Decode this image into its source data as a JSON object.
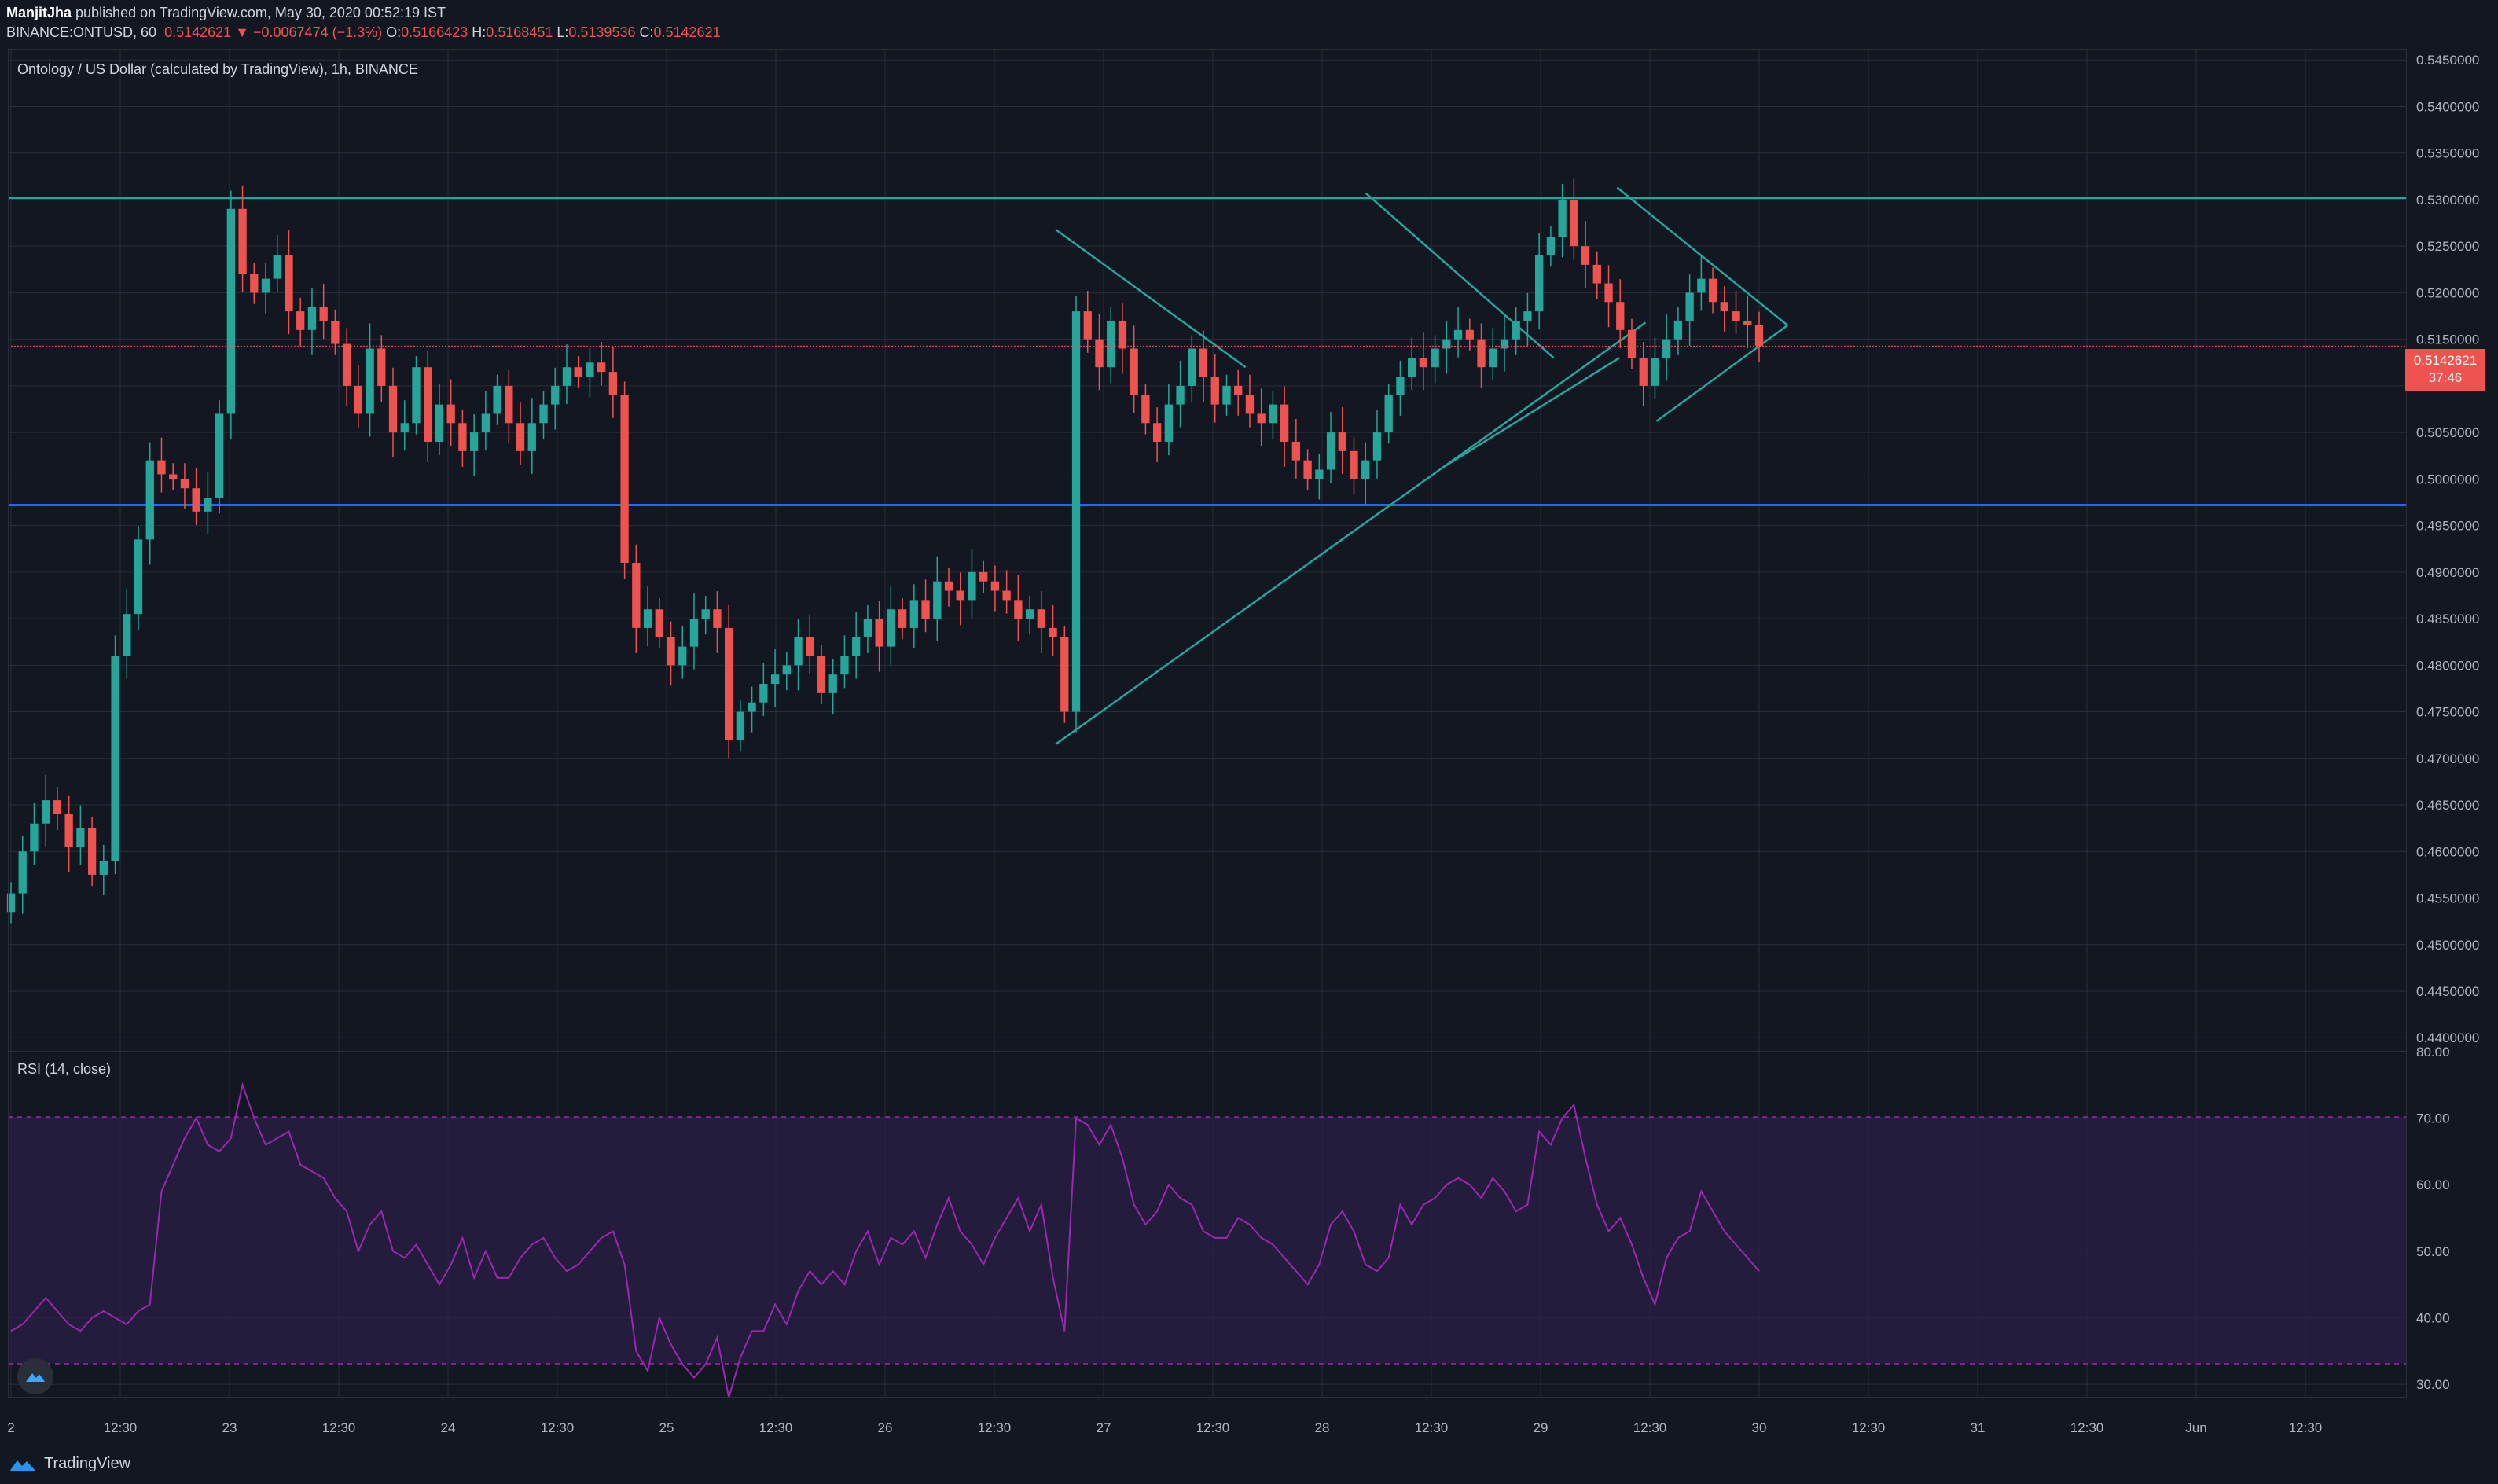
{
  "header": {
    "author": "ManjitJha",
    "published_text": "published on TradingView.com, May 30, 2020 00:52:19 IST",
    "symbol": "BINANCE:ONTUSD, 60",
    "last": "0.5142621",
    "change": "▼ −0.0067474 (−1.3%)",
    "o_label": "O:",
    "o_value": "0.5166423",
    "h_label": "H:",
    "h_value": "0.5168451",
    "l_label": "L:",
    "l_value": "0.5139536",
    "c_label": "C:",
    "c_value": "0.5142621"
  },
  "main_pane": {
    "title": "Ontology / US Dollar (calculated by TradingView), 1h, BINANCE",
    "price_tag": "0.5142621",
    "countdown": "37:46"
  },
  "rsi_pane": {
    "title": "RSI (14, close)"
  },
  "footer": {
    "brand": "TradingView"
  },
  "colors": {
    "background": "#131722",
    "up": "#26a69a",
    "down": "#ef5350",
    "trendline": "#26a69a",
    "support": "#2962ff",
    "rsi_line": "#9c27b0",
    "rsi_band": "#2a1f45"
  },
  "chart_data": [
    {
      "type": "candlestick",
      "title": "Ontology / US Dollar (calculated by TradingView), 1h, BINANCE",
      "x_ticks": [
        "2",
        "12:30",
        "23",
        "12:30",
        "24",
        "12:30",
        "25",
        "12:30",
        "26",
        "12:30",
        "27",
        "12:30",
        "28",
        "12:30",
        "29",
        "12:30",
        "30",
        "12:30",
        "31",
        "12:30",
        "Jun",
        "12:30"
      ],
      "y_ticks": [
        "0.5450000",
        "0.5400000",
        "0.5350000",
        "0.5300000",
        "0.5250000",
        "0.5200000",
        "0.5150000",
        "0.5100000",
        "0.5050000",
        "0.5000000",
        "0.4950000",
        "0.4900000",
        "0.4850000",
        "0.4800000",
        "0.4750000",
        "0.4700000",
        "0.4650000",
        "0.4600000",
        "0.4550000",
        "0.4500000",
        "0.4450000",
        "0.4400000"
      ],
      "ylim": [
        0.4385,
        0.5462
      ],
      "horizontal_lines": [
        {
          "name": "resistance",
          "y": 0.5302,
          "color": "#26a69a"
        },
        {
          "name": "support",
          "y": 0.4972,
          "color": "#2962ff"
        }
      ],
      "trendlines": [
        {
          "from": [
            26.78,
            0.5268
          ],
          "to": [
            27.65,
            0.512
          ]
        },
        {
          "from": [
            26.78,
            0.4715
          ],
          "to": [
            29.48,
            0.5168
          ]
        },
        {
          "from": [
            28.2,
            0.5307
          ],
          "to": [
            29.06,
            0.513
          ]
        },
        {
          "from": [
            28.55,
            0.5012
          ],
          "to": [
            29.36,
            0.513
          ]
        },
        {
          "from": [
            29.35,
            0.5313
          ],
          "to": [
            30.13,
            0.5165
          ]
        },
        {
          "from": [
            29.53,
            0.5062
          ],
          "to": [
            30.13,
            0.5165
          ]
        }
      ],
      "candles_close": [
        0.4555,
        0.46,
        0.463,
        0.4655,
        0.464,
        0.4605,
        0.4625,
        0.4575,
        0.459,
        0.481,
        0.4855,
        0.4935,
        0.502,
        0.5005,
        0.5,
        0.499,
        0.4965,
        0.498,
        0.507,
        0.529,
        0.522,
        0.52,
        0.5215,
        0.524,
        0.518,
        0.516,
        0.5185,
        0.517,
        0.5145,
        0.51,
        0.507,
        0.514,
        0.51,
        0.505,
        0.506,
        0.512,
        0.504,
        0.508,
        0.506,
        0.503,
        0.505,
        0.507,
        0.51,
        0.506,
        0.503,
        0.506,
        0.508,
        0.51,
        0.512,
        0.511,
        0.5125,
        0.5115,
        0.509,
        0.491,
        0.484,
        0.486,
        0.483,
        0.48,
        0.482,
        0.485,
        0.486,
        0.484,
        0.472,
        0.475,
        0.476,
        0.478,
        0.479,
        0.48,
        0.483,
        0.481,
        0.477,
        0.479,
        0.481,
        0.483,
        0.485,
        0.482,
        0.486,
        0.484,
        0.487,
        0.485,
        0.489,
        0.488,
        0.487,
        0.49,
        0.489,
        0.488,
        0.487,
        0.485,
        0.486,
        0.484,
        0.483,
        0.475,
        0.518,
        0.515,
        0.512,
        0.517,
        0.514,
        0.509,
        0.506,
        0.504,
        0.508,
        0.51,
        0.514,
        0.511,
        0.508,
        0.51,
        0.509,
        0.507,
        0.506,
        0.508,
        0.504,
        0.502,
        0.5,
        0.501,
        0.505,
        0.503,
        0.5,
        0.502,
        0.505,
        0.509,
        0.511,
        0.513,
        0.512,
        0.514,
        0.515,
        0.516,
        0.515,
        0.512,
        0.514,
        0.515,
        0.517,
        0.518,
        0.524,
        0.526,
        0.53,
        0.525,
        0.523,
        0.521,
        0.519,
        0.516,
        0.513,
        0.51,
        0.513,
        0.515,
        0.517,
        0.52,
        0.5215,
        0.519,
        0.518,
        0.517,
        0.5165,
        0.5143
      ],
      "series": [
        {
          "name": "ONTUSD",
          "type": "candles"
        }
      ],
      "current_price": 0.5142621
    },
    {
      "type": "line",
      "title": "RSI (14, close)",
      "y_ticks": [
        "80.00",
        "70.00",
        "60.00",
        "50.00",
        "40.00",
        "30.00"
      ],
      "ylim": [
        28,
        80
      ],
      "band": [
        30,
        70
      ],
      "values": [
        38,
        39,
        41,
        43,
        41,
        39,
        38,
        40,
        41,
        40,
        39,
        41,
        42,
        59,
        63,
        67,
        70,
        66,
        65,
        67,
        75,
        70,
        66,
        67,
        68,
        63,
        62,
        61,
        58,
        56,
        50,
        54,
        56,
        50,
        49,
        51,
        48,
        45,
        48,
        52,
        46,
        50,
        46,
        46,
        49,
        51,
        52,
        49,
        47,
        48,
        50,
        52,
        53,
        48,
        35,
        32,
        40,
        36,
        33,
        31,
        33,
        37,
        28,
        34,
        38,
        38,
        42,
        39,
        44,
        47,
        45,
        47,
        45,
        50,
        53,
        48,
        52,
        51,
        53,
        49,
        54,
        58,
        53,
        51,
        48,
        52,
        55,
        58,
        53,
        57,
        46,
        38,
        70,
        69,
        66,
        69,
        64,
        57,
        54,
        56,
        60,
        58,
        57,
        53,
        52,
        52,
        55,
        54,
        52,
        51,
        49,
        47,
        45,
        48,
        54,
        56,
        53,
        48,
        47,
        49,
        57,
        54,
        57,
        58,
        60,
        61,
        60,
        58,
        61,
        59,
        56,
        57,
        68,
        66,
        70,
        72,
        64,
        57,
        53,
        55,
        51,
        46,
        42,
        49,
        52,
        53,
        59,
        56,
        53,
        51,
        49,
        47
      ]
    }
  ]
}
